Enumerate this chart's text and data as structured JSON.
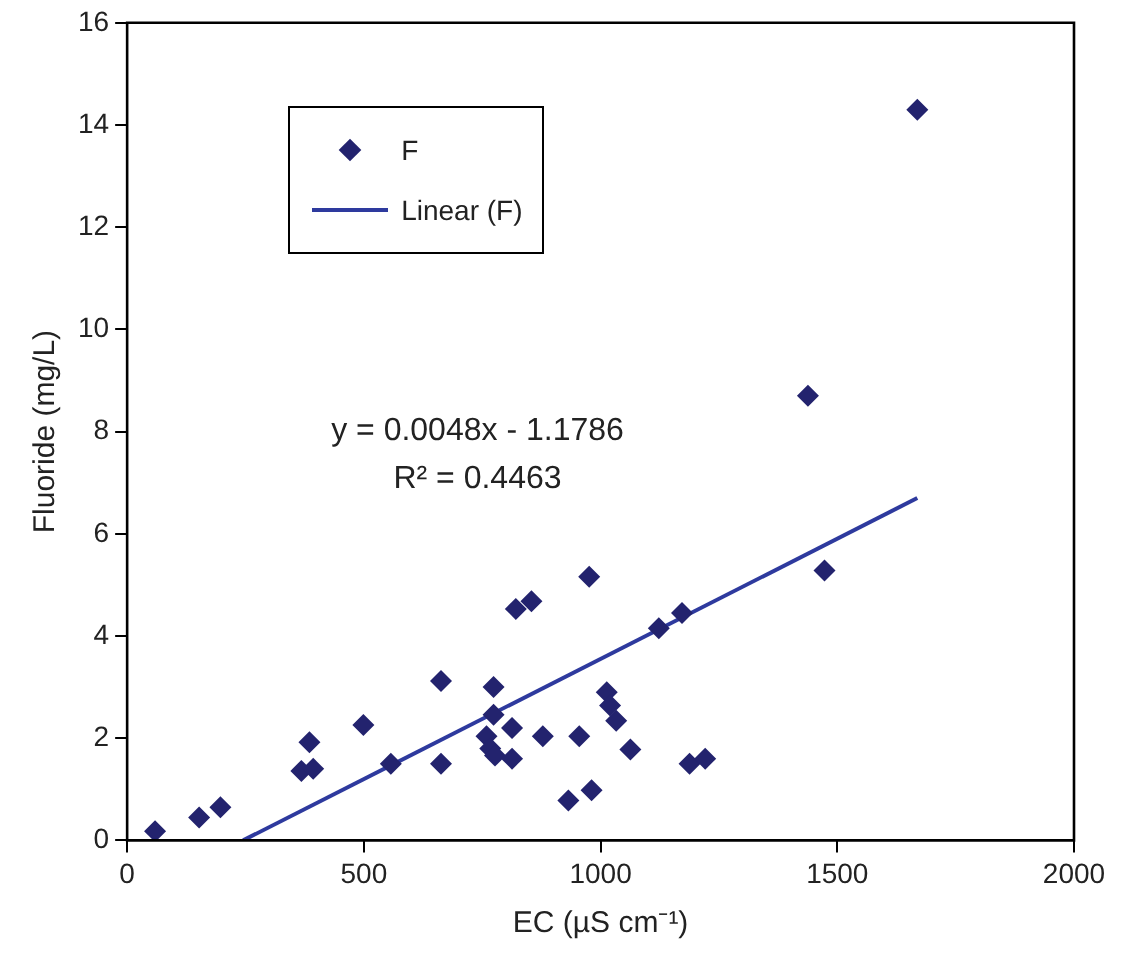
{
  "chart_data": {
    "type": "scatter",
    "xlabel": "EC (µS cm⁻¹)",
    "ylabel": "Fluoride (mg/L)",
    "xlim": [
      0,
      2000
    ],
    "xticks": [
      0,
      500,
      1000,
      1500,
      2000
    ],
    "ylim": [
      0,
      16
    ],
    "yticks": [
      0,
      2,
      4,
      6,
      8,
      10,
      12,
      14,
      16
    ],
    "grid": false,
    "legend": "top left",
    "annotations": [
      "y = 0.0048x - 1.1786",
      "R² = 0.4463"
    ],
    "series": [
      {
        "name": "F",
        "marker": "diamond",
        "color": "#23236e",
        "x": [
          59,
          152,
          197,
          368,
          393,
          385,
          499,
          557,
          663,
          663,
          774,
          774,
          759,
          767,
          777,
          813,
          813,
          821,
          854,
          878,
          932,
          955,
          976,
          981,
          1013,
          1020,
          1033,
          1063,
          1123,
          1172,
          1188,
          1221,
          1438,
          1473,
          1669
        ],
        "values": [
          0.18,
          0.45,
          0.65,
          1.36,
          1.4,
          1.92,
          2.26,
          1.5,
          3.12,
          1.5,
          3.0,
          2.46,
          2.04,
          1.8,
          1.66,
          2.2,
          1.6,
          4.53,
          4.68,
          2.04,
          0.78,
          2.04,
          5.16,
          0.98,
          2.9,
          2.64,
          2.34,
          1.78,
          4.15,
          4.45,
          1.5,
          1.6,
          8.7,
          5.28,
          14.3
        ]
      },
      {
        "name": "Linear (F)",
        "type": "line",
        "marker": "none",
        "color": "#2e3a9e",
        "x": [
          245,
          1669
        ],
        "values": [
          0,
          6.7
        ]
      }
    ]
  }
}
